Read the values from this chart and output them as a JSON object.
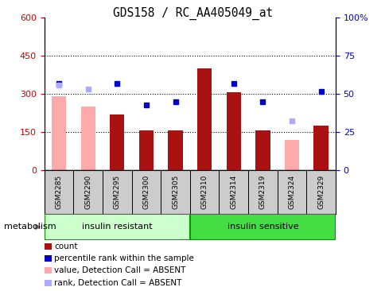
{
  "title": "GDS158 / RC_AA405049_at",
  "samples": [
    "GSM2285",
    "GSM2290",
    "GSM2295",
    "GSM2300",
    "GSM2305",
    "GSM2310",
    "GSM2314",
    "GSM2319",
    "GSM2324",
    "GSM2329"
  ],
  "bar_values": [
    null,
    null,
    220,
    155,
    158,
    400,
    305,
    158,
    null,
    175
  ],
  "bar_color": "#aa1111",
  "absent_value_bars": [
    290,
    250,
    null,
    null,
    null,
    null,
    null,
    null,
    120,
    null
  ],
  "absent_value_color": "#ffaaaa",
  "blue_dots_left": [
    340,
    null,
    340,
    255,
    270,
    null,
    340,
    270,
    null,
    310
  ],
  "blue_dot_color": "#0000cc",
  "absent_rank_dots_left": [
    335,
    320,
    null,
    null,
    null,
    null,
    null,
    null,
    195,
    null
  ],
  "absent_rank_color": "#aaaaff",
  "ylim_left": [
    0,
    600
  ],
  "ylim_right": [
    0,
    100
  ],
  "yticks_left": [
    0,
    150,
    300,
    450,
    600
  ],
  "ytick_labels_left": [
    "0",
    "150",
    "300",
    "450",
    "600"
  ],
  "yticks_right": [
    0,
    25,
    50,
    75,
    100
  ],
  "ytick_labels_right": [
    "0",
    "25",
    "50",
    "75",
    "100%"
  ],
  "left_tick_color": "#cc0000",
  "right_tick_color": "#0000cc",
  "group1_label": "insulin resistant",
  "group2_label": "insulin sensitive",
  "group1_color": "#ccffcc",
  "group2_color": "#44dd44",
  "group_border_color": "#009900",
  "metabolism_label": "metabolism",
  "legend_items": [
    {
      "label": "count",
      "color": "#aa1111"
    },
    {
      "label": "percentile rank within the sample",
      "color": "#0000cc"
    },
    {
      "label": "value, Detection Call = ABSENT",
      "color": "#ffaaaa"
    },
    {
      "label": "rank, Detection Call = ABSENT",
      "color": "#aaaaff"
    }
  ],
  "bg_color": "#ffffff",
  "plot_bg_color": "#ffffff",
  "tick_label_area_color": "#cccccc",
  "bar_width": 0.5,
  "dotted_lines": [
    150,
    300,
    450
  ],
  "dot_line_color": "black",
  "dot_line_lw": 0.8
}
